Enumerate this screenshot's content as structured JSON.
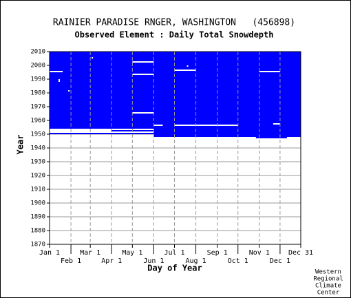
{
  "chart_data": {
    "type": "coverage",
    "title": "RAINIER PARADISE RNGER, WASHINGTON   (456898)",
    "subtitle": "Observed Element : Daily Total Snowdepth",
    "x_label": "Day of Year",
    "y_label": "Year",
    "footer": [
      "Western",
      "Regional",
      "Climate",
      "Center"
    ],
    "xlim": [
      1,
      365
    ],
    "ylim": [
      1870,
      2010
    ],
    "yticks": [
      1870,
      1880,
      1890,
      1900,
      1910,
      1920,
      1930,
      1940,
      1950,
      1960,
      1970,
      1980,
      1990,
      2000,
      2010
    ],
    "xticks": [
      {
        "value": 1,
        "label": "Jan 1"
      },
      {
        "value": 32,
        "label": "Feb 1"
      },
      {
        "value": 60,
        "label": "Mar 1"
      },
      {
        "value": 91,
        "label": "Apr 1"
      },
      {
        "value": 121,
        "label": "May 1"
      },
      {
        "value": 152,
        "label": "Jun 1"
      },
      {
        "value": 182,
        "label": "Jul 1"
      },
      {
        "value": 213,
        "label": "Aug 1"
      },
      {
        "value": 244,
        "label": "Sep 1"
      },
      {
        "value": 274,
        "label": "Oct 1"
      },
      {
        "value": 305,
        "label": "Nov 1"
      },
      {
        "value": 335,
        "label": "Dec 1"
      },
      {
        "value": 365,
        "label": "Dec 31"
      }
    ],
    "color": "#0000ff",
    "records": [
      [
        1,
        365,
        1954,
        2010
      ],
      [
        1,
        365,
        1950,
        1951
      ],
      [
        152,
        365,
        1948,
        1954
      ],
      [
        90,
        152,
        1952,
        1954
      ],
      [
        300,
        345,
        1947,
        1948
      ]
    ],
    "gaps": [
      [
        1,
        20,
        1995,
        1996
      ],
      [
        14,
        16,
        1988,
        1990
      ],
      [
        28,
        30,
        1981,
        1982
      ],
      [
        121,
        152,
        2002,
        2003
      ],
      [
        121,
        152,
        1993,
        1994
      ],
      [
        182,
        213,
        1996,
        1997
      ],
      [
        121,
        152,
        1965,
        1966
      ],
      [
        305,
        335,
        1995,
        1996
      ],
      [
        152,
        165,
        1956,
        1957
      ],
      [
        182,
        274,
        1956,
        1957
      ],
      [
        1,
        90,
        1953,
        1954
      ],
      [
        90,
        152,
        1953,
        1954
      ],
      [
        325,
        335,
        1957,
        1958
      ],
      [
        62,
        64,
        2005,
        2006
      ],
      [
        200,
        202,
        1999,
        2000
      ]
    ]
  }
}
